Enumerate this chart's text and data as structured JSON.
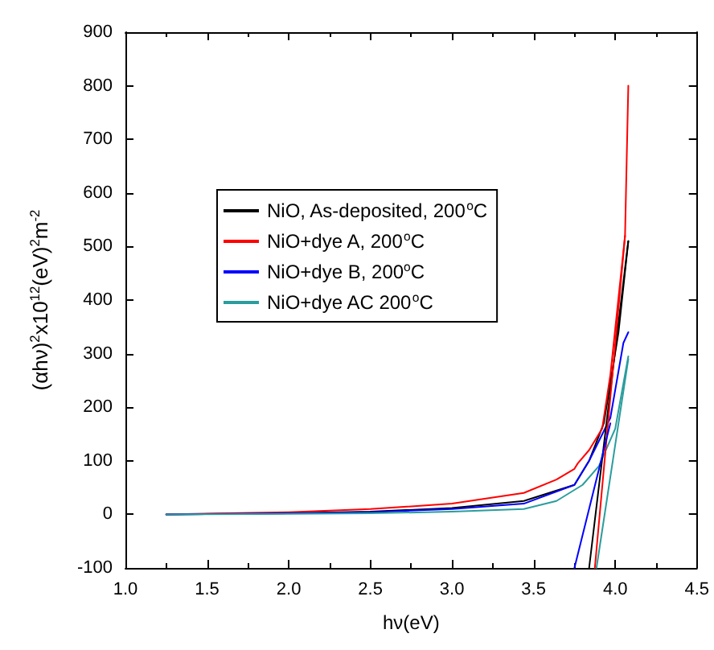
{
  "chart_data": {
    "type": "line",
    "xlabel": "hν(eV)",
    "ylabel": "(αhν)$^{2}$x10$^{12}$(eV)$^{2}$m$^{-2}$",
    "xlim": [
      1.0,
      4.5
    ],
    "ylim": [
      -100,
      900
    ],
    "xticks": [
      {
        "value": 1.0,
        "label": "1.0"
      },
      {
        "value": 1.5,
        "label": "1.5"
      },
      {
        "value": 2.0,
        "label": "2.0"
      },
      {
        "value": 2.5,
        "label": "2.5"
      },
      {
        "value": 3.0,
        "label": "3.0"
      },
      {
        "value": 3.5,
        "label": "3.5"
      },
      {
        "value": 4.0,
        "label": "4.0"
      },
      {
        "value": 4.5,
        "label": "4.5"
      }
    ],
    "yticks": [
      -100,
      0,
      100,
      200,
      300,
      400,
      500,
      600,
      700,
      800,
      900
    ],
    "grid": false,
    "legend": "left",
    "marker": "none",
    "line_style": "solid",
    "series": [
      {
        "name": "NiO, As-deposited, 200$^{o}$C",
        "color": "#000000",
        "x": [
          1.25,
          2.0,
          2.5,
          3.0,
          3.44,
          3.75,
          3.84,
          3.93,
          4.02,
          4.08
        ],
        "values": [
          0,
          2,
          5,
          12,
          25,
          55,
          100,
          170,
          340,
          510
        ]
      },
      {
        "name": "NiO+dye A, 200$^{o}$C",
        "color": "#ff0000",
        "x": [
          1.25,
          2.0,
          2.5,
          3.0,
          3.44,
          3.64,
          3.75,
          3.77,
          3.84,
          3.92,
          3.97,
          4.06,
          4.08
        ],
        "values": [
          0,
          4,
          10,
          20,
          40,
          65,
          85,
          95,
          120,
          160,
          260,
          520,
          800
        ]
      },
      {
        "name": "NiO+dye B, 200$^{o}$C",
        "color": "#0000ff",
        "x": [
          1.25,
          2.0,
          2.5,
          3.0,
          3.44,
          3.75,
          3.84,
          3.97,
          4.05,
          4.08
        ],
        "values": [
          0,
          2,
          4,
          10,
          20,
          55,
          100,
          180,
          320,
          340
        ]
      },
      {
        "name": "NiO+dye AC 200$^{o}$C",
        "color": "#2a9d9d",
        "x": [
          1.25,
          2.0,
          2.5,
          3.0,
          3.44,
          3.64,
          3.8,
          3.9,
          4.0,
          4.08
        ],
        "values": [
          0,
          1,
          2,
          5,
          10,
          25,
          55,
          90,
          160,
          295
        ]
      },
      {
        "color": "#000000",
        "x": [
          3.84,
          4.08
        ],
        "values": [
          -100,
          510
        ]
      },
      {
        "color": "#ff0000",
        "x": [
          3.875,
          4.06
        ],
        "values": [
          -100,
          520
        ]
      },
      {
        "color": "#0000ff",
        "x": [
          3.75,
          3.97
        ],
        "values": [
          -100,
          170
        ]
      },
      {
        "color": "#2a9d9d",
        "x": [
          3.885,
          4.08
        ],
        "values": [
          -100,
          290
        ]
      }
    ]
  }
}
